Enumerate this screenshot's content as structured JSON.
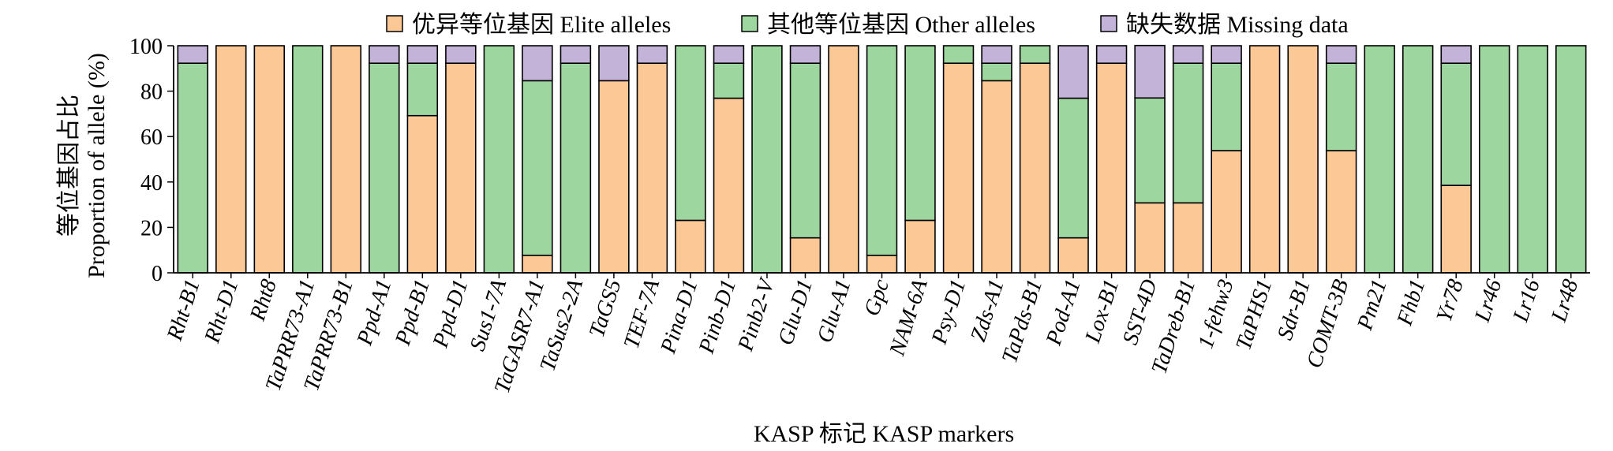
{
  "chart_data": {
    "type": "bar",
    "stacked": true,
    "ylabel_line1": "等位基因占比",
    "ylabel_line2": "Proportion of allele (%)",
    "xlabel": "KASP 标记 KASP markers",
    "ylim": [
      0,
      100
    ],
    "yticks": [
      0,
      20,
      40,
      60,
      80,
      100
    ],
    "legend_position": "top-center",
    "categories": [
      "Rht-B1",
      "Rht-D1",
      "Rht8",
      "TaPRR73-A1",
      "TaPRR73-B1",
      "Ppd-A1",
      "Ppd-B1",
      "Ppd-D1",
      "Sus1-7A",
      "TaGASR7-A1",
      "TaSus2-2A",
      "TaGS5",
      "TEF-7A",
      "Pina-D1",
      "Pinb-D1",
      "Pinb2-V",
      "Glu-D1",
      "Glu-A1",
      "Gpc",
      "NAM-6A",
      "Psy-D1",
      "Zds-A1",
      "TaPds-B1",
      "Pod-A1",
      "Lox-B1",
      "SST-4D",
      "TaDreb-B1",
      "1-fehw3",
      "TaPHS1",
      "Sdr-B1",
      "COMT-3B",
      "Pm21",
      "Fhb1",
      "Yr78",
      "Lr46",
      "Lr16",
      "Lr48"
    ],
    "series": [
      {
        "name": "优异等位基因 Elite alleles",
        "color": "#FCC896",
        "values": [
          0,
          100,
          100,
          0,
          100,
          0,
          69.2,
          92.3,
          0,
          7.7,
          0,
          84.6,
          92.3,
          23.1,
          76.9,
          0,
          15.4,
          100,
          7.7,
          23.1,
          92.3,
          84.6,
          92.3,
          15.4,
          92.3,
          30.8,
          30.8,
          53.8,
          100,
          100,
          53.8,
          0,
          0,
          38.5,
          0,
          0,
          0
        ]
      },
      {
        "name": "其他等位基因 Other alleles",
        "color": "#9DD69E",
        "values": [
          92.3,
          0,
          0,
          100,
          0,
          92.3,
          23.1,
          0,
          100,
          76.9,
          92.3,
          0,
          0,
          76.9,
          15.4,
          100,
          76.9,
          0,
          92.3,
          76.9,
          7.7,
          7.7,
          7.7,
          61.5,
          0,
          46.2,
          61.5,
          38.5,
          0,
          0,
          38.5,
          100,
          100,
          53.8,
          100,
          100,
          100
        ]
      },
      {
        "name": "缺失数据 Missing data",
        "color": "#C4B3D8",
        "values": [
          7.7,
          0,
          0,
          0,
          0,
          7.7,
          7.7,
          7.7,
          0,
          15.4,
          7.7,
          15.4,
          7.7,
          0,
          7.7,
          0,
          7.7,
          0,
          0,
          0,
          0,
          7.7,
          0,
          23.1,
          7.7,
          23.1,
          7.7,
          7.7,
          0,
          0,
          7.7,
          0,
          0,
          7.7,
          0,
          0,
          0
        ]
      }
    ]
  }
}
